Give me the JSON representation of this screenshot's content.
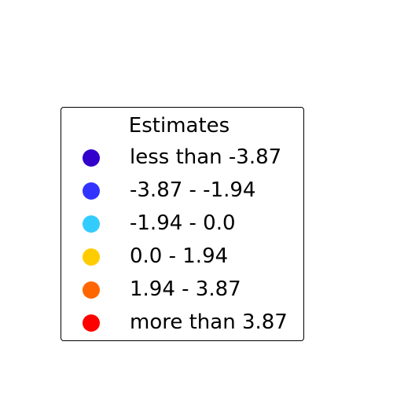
{
  "chart_data": {
    "type": "legend",
    "title": "Estimates",
    "legend": {
      "title": "Estimates",
      "items": [
        {
          "label": "less than -3.87",
          "color": "#3300cc"
        },
        {
          "label": "-3.87 - -1.94",
          "color": "#3333ff"
        },
        {
          "label": "-1.94 - 0.0",
          "color": "#33ccff"
        },
        {
          "label": "0.0 - 1.94",
          "color": "#ffcc00"
        },
        {
          "label": "1.94 - 3.87",
          "color": "#ff6600"
        },
        {
          "label": "more than 3.87",
          "color": "#ff0000"
        }
      ]
    },
    "bins": [
      {
        "min": null,
        "max": -3.87
      },
      {
        "min": -3.87,
        "max": -1.94
      },
      {
        "min": -1.94,
        "max": 0.0
      },
      {
        "min": 0.0,
        "max": 1.94
      },
      {
        "min": 1.94,
        "max": 3.87
      },
      {
        "min": 3.87,
        "max": null
      }
    ]
  }
}
